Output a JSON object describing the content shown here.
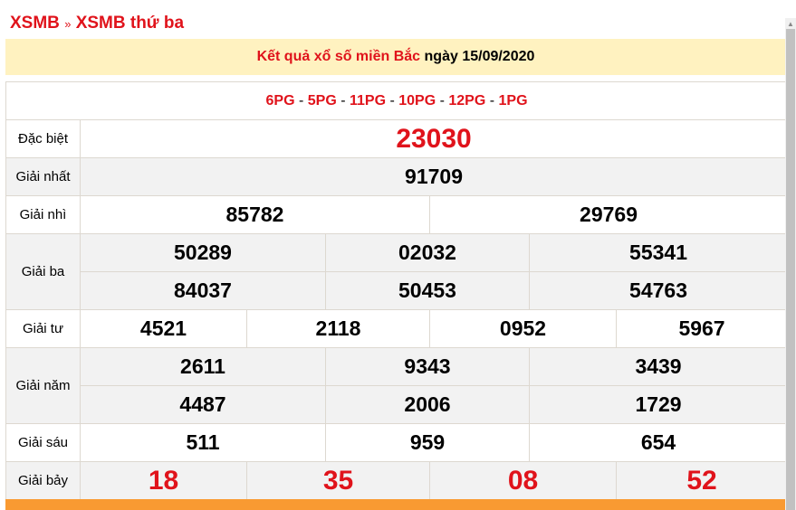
{
  "breadcrumb": {
    "home": "XSMB",
    "sep": "»",
    "current": "XSMB thứ ba"
  },
  "banner": {
    "title": "Kết quả xổ số miền Bắc",
    "date": "ngày 15/09/2020"
  },
  "codes": [
    "6PG",
    "5PG",
    "11PG",
    "10PG",
    "12PG",
    "1PG"
  ],
  "prizes": {
    "db": {
      "label": "Đặc biệt",
      "values": [
        "23030"
      ]
    },
    "g1": {
      "label": "Giải nhất",
      "values": [
        "91709"
      ]
    },
    "g2": {
      "label": "Giải nhì",
      "values": [
        "85782",
        "29769"
      ]
    },
    "g3": {
      "label": "Giải ba",
      "values": [
        "50289",
        "02032",
        "55341",
        "84037",
        "50453",
        "54763"
      ]
    },
    "g4": {
      "label": "Giải tư",
      "values": [
        "4521",
        "2118",
        "0952",
        "5967"
      ]
    },
    "g5": {
      "label": "Giải năm",
      "values": [
        "2611",
        "9343",
        "3439",
        "4487",
        "2006",
        "1729"
      ]
    },
    "g6": {
      "label": "Giải sáu",
      "values": [
        "511",
        "959",
        "654"
      ]
    },
    "g7": {
      "label": "Giải bảy",
      "values": [
        "18",
        "35",
        "08",
        "52"
      ]
    }
  },
  "colors": {
    "accent": "#e0131b",
    "banner": "#fff2c0",
    "footer": "#f99a32"
  }
}
